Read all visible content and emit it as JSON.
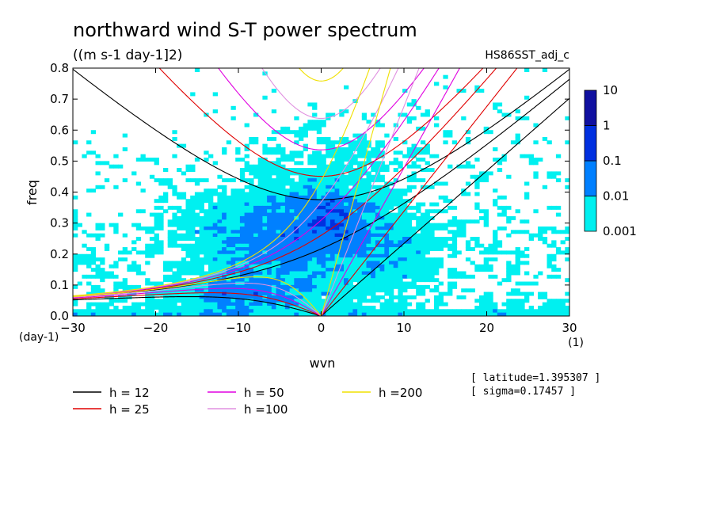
{
  "chart_data": {
    "type": "heatmap",
    "title": "northward wind S-T power spectrum",
    "subtitle": "((m s-1 day-1]2)",
    "run_label": "HS86SST_adj_c",
    "xlabel": "wvn",
    "ylabel": "freq",
    "x_unit": "(1)",
    "y_unit": "(day-1)",
    "xlim": [
      -30,
      30
    ],
    "ylim": [
      0,
      0.8
    ],
    "x_ticks": [
      -30,
      -20,
      -10,
      0,
      10,
      20,
      30
    ],
    "x_tick_labels": [
      "-30",
      "-20",
      "-10",
      "0",
      "10",
      "20",
      "30"
    ],
    "y_ticks": [
      0,
      0.1,
      0.2,
      0.3,
      0.4,
      0.5,
      0.6,
      0.7,
      0.8
    ],
    "y_tick_labels": [
      "0.0",
      "0.1",
      "0.2",
      "0.3",
      "0.4",
      "0.5",
      "0.6",
      "0.7",
      "0.8"
    ],
    "colorbar": {
      "levels": [
        0.001,
        0.01,
        0.1,
        1,
        10
      ],
      "level_labels": [
        "0.001",
        "0.01",
        "0.1",
        "1",
        "10"
      ],
      "colors": [
        "#00f0f0",
        "#0080ff",
        "#0030e0",
        "#1010a0"
      ]
    },
    "dispersion_curves": [
      {
        "name": "h = 12",
        "h": 12,
        "color": "#000000"
      },
      {
        "name": "h = 25",
        "h": 25,
        "color": "#e00000"
      },
      {
        "name": "h = 50",
        "h": 50,
        "color": "#e000e0"
      },
      {
        "name": "h =100",
        "h": 100,
        "color": "#e090e0"
      },
      {
        "name": "h =200",
        "h": 200,
        "color": "#f0e000"
      }
    ],
    "annotations": [
      "[ latitude=1.395307 ]",
      "[ sigma=0.17457 ]"
    ]
  }
}
